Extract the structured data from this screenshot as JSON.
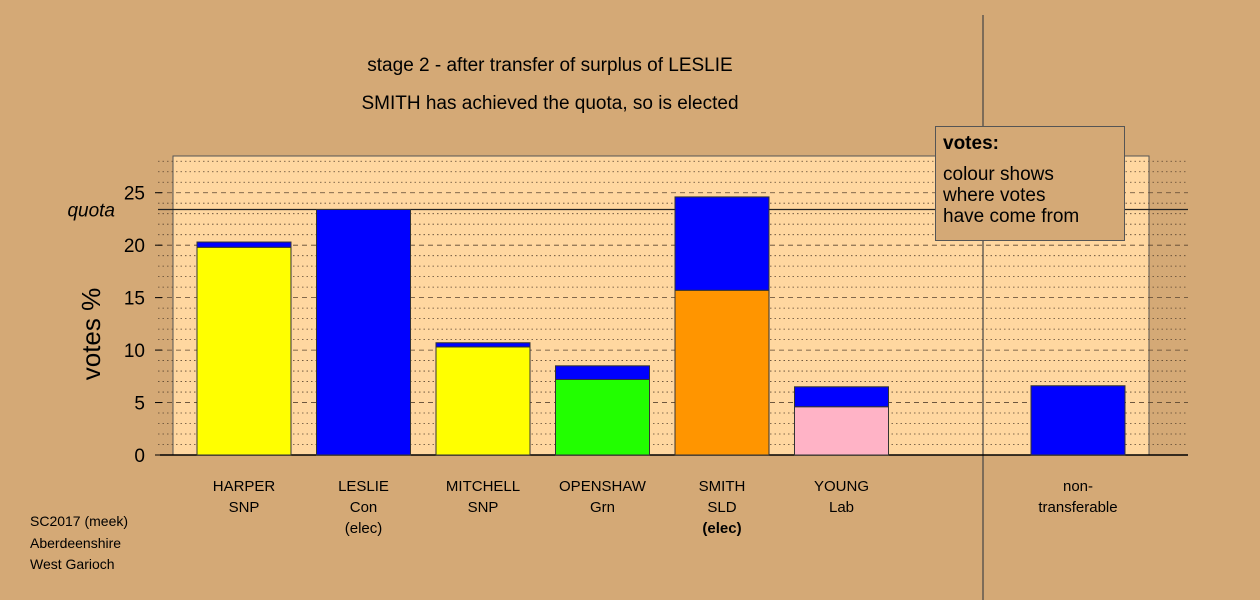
{
  "titles": {
    "stage": "stage 2 - after transfer of surplus of LESLIE",
    "status": "SMITH has achieved the quota, so is elected"
  },
  "legend": {
    "header": "votes:",
    "lines": [
      "colour shows",
      "where votes",
      "have come from"
    ]
  },
  "footer": {
    "lines": [
      "SC2017 (meek)",
      "Aberdeenshire",
      "West Garioch"
    ]
  },
  "colors": {
    "background": "#d4a976",
    "plot_area": "#ffd7a0",
    "transferred": "#0000ff",
    "SNP": "#ffff00",
    "Con": "#0000ff",
    "Grn": "#22ff00",
    "SLD": "#ff9500",
    "Lab": "#ffb3c6"
  },
  "chart_data": {
    "type": "bar",
    "stacked": true,
    "ylabel": "votes %",
    "ylim": [
      0,
      28.5
    ],
    "yticks": [
      0,
      5,
      10,
      15,
      20,
      25
    ],
    "quota": 23.4,
    "quota_label": "quota",
    "grid": "dotted at 1, dashed at 5",
    "categories": [
      {
        "name": "HARPER",
        "party": "SNP",
        "note": "",
        "note_bold": false,
        "first_prefs": 19.8,
        "transferred": 0.5,
        "first_color": "SNP"
      },
      {
        "name": "LESLIE",
        "party": "Con",
        "note": "(elec)",
        "note_bold": false,
        "first_prefs": 23.4,
        "transferred": 0,
        "first_color": "Con"
      },
      {
        "name": "MITCHELL",
        "party": "SNP",
        "note": "",
        "note_bold": false,
        "first_prefs": 10.3,
        "transferred": 0.4,
        "first_color": "SNP"
      },
      {
        "name": "OPENSHAW",
        "party": "Grn",
        "note": "",
        "note_bold": false,
        "first_prefs": 7.2,
        "transferred": 1.3,
        "first_color": "Grn"
      },
      {
        "name": "SMITH",
        "party": "SLD",
        "note": "(elec)",
        "note_bold": true,
        "first_prefs": 15.7,
        "transferred": 8.9,
        "first_color": "SLD"
      },
      {
        "name": "YOUNG",
        "party": "Lab",
        "note": "",
        "note_bold": false,
        "first_prefs": 4.6,
        "transferred": 1.9,
        "first_color": "Lab"
      }
    ],
    "nontransferable": {
      "label_lines": [
        "non-",
        "transferable"
      ],
      "value": 6.6
    }
  }
}
